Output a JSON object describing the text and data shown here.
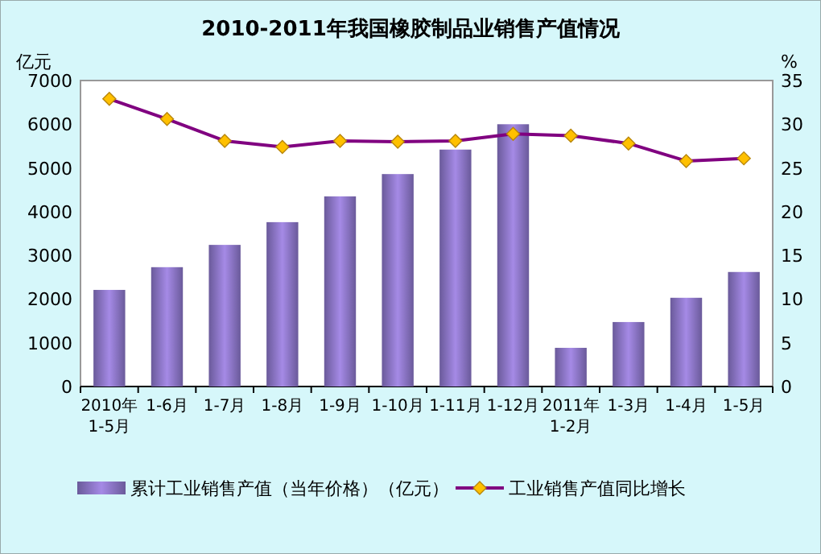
{
  "chart_data": {
    "type": "bar",
    "title": "2010-2011年我国橡胶制品业销售产值情况",
    "categories": [
      "2010年 1-5月",
      "1-6月",
      "1-7月",
      "1-8月",
      "1-9月",
      "1-10月",
      "1-11月",
      "1-12月",
      "2011年 1-2月",
      "1-3月",
      "1-4月",
      "1-5月"
    ],
    "series": [
      {
        "name": "累计工业销售产值（当年价格）（亿元）",
        "color": "#a58ae6",
        "values": [
          2210,
          2730,
          3240,
          3760,
          4350,
          4860,
          5420,
          6000,
          885,
          1475,
          2030,
          2620
        ]
      },
      {
        "name": "工业销售产值同比增长",
        "type": "line",
        "axis": "y2",
        "color": "#800080",
        "marker": "diamond",
        "values": [
          32.9,
          30.6,
          28.1,
          27.4,
          28.1,
          28.0,
          28.1,
          28.9,
          28.7,
          27.8,
          25.8,
          26.1
        ]
      }
    ],
    "ylabel": "亿元",
    "y2label": "%",
    "ylim": [
      0,
      7000
    ],
    "yticks": [
      0,
      1000,
      2000,
      3000,
      4000,
      5000,
      6000,
      7000
    ],
    "y2lim": [
      0,
      35
    ],
    "y2ticks": [
      0,
      5,
      10,
      15,
      20,
      25,
      30,
      35
    ],
    "legend": "bottom"
  }
}
